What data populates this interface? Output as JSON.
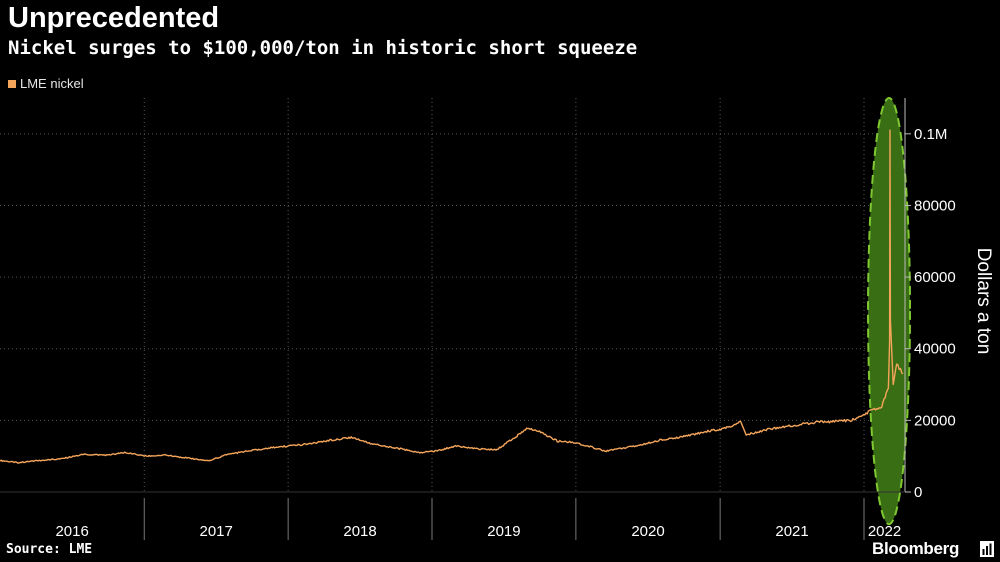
{
  "header": {
    "title": "Unprecedented",
    "subtitle": "Nickel surges to $100,000/ton in historic short squeeze"
  },
  "footer": {
    "source": "Source: LME",
    "brand": "Bloomberg"
  },
  "colors": {
    "background": "#000000",
    "series": "#f5a55a",
    "highlight_fill": "#3a6e14",
    "highlight_stroke": "#7fc832",
    "grid": "#555555"
  },
  "chart_data": {
    "type": "line",
    "title": "Unprecedented",
    "subtitle": "Nickel surges to $100,000/ton in historic short squeeze",
    "xlabel": "",
    "ylabel": "Dollars a ton",
    "ylim": [
      0,
      110000
    ],
    "xlim": [
      "2016-01-01",
      "2022-04-15"
    ],
    "x_ticks": [
      "2016",
      "2017",
      "2018",
      "2019",
      "2020",
      "2021",
      "2022"
    ],
    "y_ticks": [
      {
        "value": 0,
        "label": "0"
      },
      {
        "value": 20000,
        "label": "20000"
      },
      {
        "value": 40000,
        "label": "40000"
      },
      {
        "value": 60000,
        "label": "60000"
      },
      {
        "value": 80000,
        "label": "80000"
      },
      {
        "value": 100000,
        "label": "0.1M"
      }
    ],
    "grid": "dotted",
    "legend_position": "top-left",
    "annotation": "highlight ellipse around March 2022 spike",
    "series": [
      {
        "name": "LME nickel",
        "x": [
          "2016-01-01",
          "2016-02-15",
          "2016-04-01",
          "2016-06-01",
          "2016-08-01",
          "2016-10-01",
          "2016-11-15",
          "2017-01-01",
          "2017-03-01",
          "2017-05-01",
          "2017-06-15",
          "2017-08-01",
          "2017-09-15",
          "2017-10-15",
          "2017-12-01",
          "2018-01-15",
          "2018-03-01",
          "2018-04-20",
          "2018-06-10",
          "2018-08-01",
          "2018-10-01",
          "2018-12-01",
          "2019-01-15",
          "2019-03-01",
          "2019-05-01",
          "2019-06-15",
          "2019-07-20",
          "2019-09-01",
          "2019-10-01",
          "2019-11-15",
          "2020-01-01",
          "2020-03-15",
          "2020-04-01",
          "2020-06-01",
          "2020-08-01",
          "2020-10-01",
          "2020-12-01",
          "2021-01-15",
          "2021-02-22",
          "2021-03-08",
          "2021-05-01",
          "2021-07-01",
          "2021-09-01",
          "2021-10-15",
          "2021-12-01",
          "2022-01-15",
          "2022-02-15",
          "2022-03-04",
          "2022-03-07",
          "2022-03-08",
          "2022-03-09",
          "2022-03-16",
          "2022-03-25",
          "2022-04-10"
        ],
        "values": [
          8800,
          8200,
          8700,
          9200,
          10500,
          10300,
          11000,
          10000,
          10300,
          9300,
          8800,
          10500,
          11300,
          11800,
          12500,
          13000,
          13500,
          14500,
          15300,
          13500,
          12300,
          11000,
          11500,
          12800,
          12000,
          11800,
          14500,
          17800,
          17000,
          14200,
          13800,
          11400,
          11800,
          12800,
          14500,
          15500,
          17000,
          17800,
          19700,
          16000,
          17500,
          18500,
          19500,
          19700,
          20000,
          22500,
          24000,
          29000,
          42000,
          101000,
          48000,
          30000,
          36000,
          33000
        ]
      }
    ]
  }
}
